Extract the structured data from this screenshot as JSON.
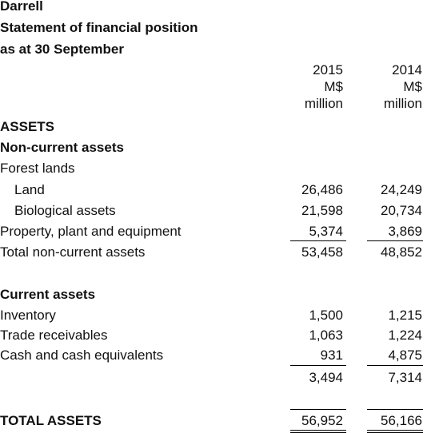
{
  "header": {
    "company": "Darrell",
    "statement": "Statement of financial position",
    "date": "as at 30 September"
  },
  "columns": [
    {
      "year": "2015",
      "currency": "M$",
      "unit": "million"
    },
    {
      "year": "2014",
      "currency": "M$",
      "unit": "million"
    }
  ],
  "assets_heading": "ASSETS",
  "noncurrent": {
    "heading": "Non-current assets",
    "forest_lands": "Forest lands",
    "rows": [
      {
        "label": "Land",
        "v2015": "26,486",
        "v2014": "24,249"
      },
      {
        "label": "Biological assets",
        "v2015": "21,598",
        "v2014": "20,734"
      },
      {
        "label": "Property, plant and equipment",
        "v2015": "5,374",
        "v2014": "3,869"
      }
    ],
    "total": {
      "label": "Total non-current assets",
      "v2015": "53,458",
      "v2014": "48,852"
    }
  },
  "current": {
    "heading": "Current assets",
    "rows": [
      {
        "label": "Inventory",
        "v2015": "1,500",
        "v2014": "1,215"
      },
      {
        "label": "Trade receivables",
        "v2015": "1,063",
        "v2014": "1,224"
      },
      {
        "label": "Cash and cash equivalents",
        "v2015": "931",
        "v2014": "4,875"
      }
    ],
    "subtotal": {
      "v2015": "3,494",
      "v2014": "7,314"
    }
  },
  "total_assets": {
    "label": "TOTAL ASSETS",
    "v2015": "56,952",
    "v2014": "56,166"
  }
}
